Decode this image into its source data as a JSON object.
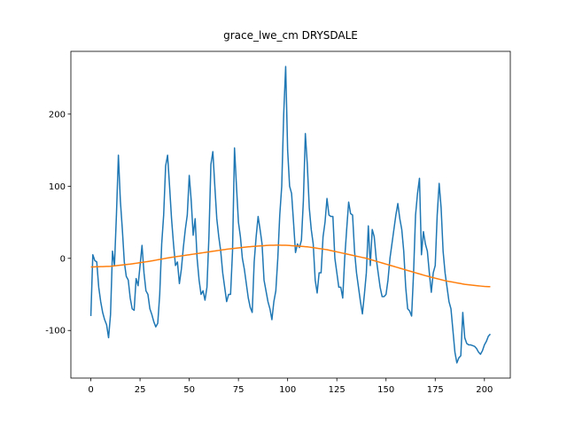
{
  "chart_data": {
    "type": "line",
    "title": "grace_lwe_cm DRYSDALE",
    "xlim": [
      -10.15,
      213.15
    ],
    "xticks": [
      0,
      25,
      50,
      75,
      100,
      125,
      150,
      175,
      200
    ],
    "ylim": [
      -166,
      287
    ],
    "yticks": [
      -100,
      0,
      100,
      200
    ],
    "grid": false,
    "series": [
      {
        "color": "#1f77b4",
        "values": [
          -80,
          5,
          -3,
          -5,
          -40,
          -60,
          -75,
          -85,
          -92,
          -110,
          -78,
          10,
          -10,
          60,
          143,
          80,
          40,
          -5,
          -25,
          -30,
          -55,
          -70,
          -72,
          -28,
          -38,
          -10,
          18,
          -20,
          -45,
          -50,
          -70,
          -78,
          -88,
          -95,
          -90,
          -50,
          20,
          60,
          128,
          143,
          100,
          55,
          20,
          -10,
          -5,
          -35,
          -15,
          15,
          40,
          60,
          115,
          80,
          32,
          55,
          0,
          -30,
          -50,
          -45,
          -58,
          -40,
          30,
          130,
          148,
          100,
          55,
          30,
          10,
          -20,
          -40,
          -60,
          -50,
          -50,
          10,
          153,
          100,
          50,
          30,
          0,
          -15,
          -35,
          -55,
          -68,
          -75,
          -5,
          30,
          58,
          40,
          20,
          -30,
          -45,
          -60,
          -70,
          -85,
          -60,
          -45,
          0,
          60,
          100,
          200,
          266,
          150,
          100,
          90,
          50,
          8,
          20,
          15,
          25,
          80,
          173,
          130,
          70,
          40,
          20,
          -30,
          -48,
          -20,
          -20,
          30,
          50,
          83,
          60,
          58,
          58,
          0,
          -20,
          -40,
          -40,
          -55,
          0,
          40,
          78,
          62,
          60,
          10,
          -20,
          -40,
          -60,
          -77,
          -50,
          -20,
          45,
          -10,
          40,
          30,
          0,
          -20,
          -40,
          -53,
          -53,
          -50,
          -30,
          0,
          20,
          40,
          60,
          76,
          55,
          40,
          10,
          -40,
          -70,
          -73,
          -80,
          -20,
          60,
          90,
          111,
          5,
          37,
          20,
          10,
          -20,
          -47,
          -20,
          -10,
          60,
          104,
          70,
          10,
          -20,
          -40,
          -60,
          -70,
          -100,
          -130,
          -145,
          -138,
          -135,
          -75,
          -110,
          -118,
          -120,
          -120,
          -121,
          -122,
          -125,
          -130,
          -133,
          -128,
          -120,
          -115,
          -108,
          -105
        ]
      },
      {
        "color": "#ff7f0e",
        "values": [
          -12,
          -11.9,
          -11.8,
          -11.7,
          -11.6,
          -11.5,
          -11.4,
          -11.3,
          -11.2,
          -11.1,
          -11,
          -10.7,
          -10.4,
          -10.1,
          -9.8,
          -9.5,
          -9.2,
          -8.9,
          -8.6,
          -8.3,
          -8,
          -7.6,
          -7.2,
          -6.8,
          -6.4,
          -6,
          -5.6,
          -5.2,
          -4.8,
          -4.4,
          -4,
          -3.5,
          -3,
          -2.5,
          -2,
          -1.5,
          -1,
          -0.5,
          0,
          0.5,
          1,
          1.4,
          1.8,
          2.2,
          2.6,
          3,
          3.4,
          3.8,
          4.2,
          4.6,
          5,
          5.4,
          5.8,
          6.2,
          6.6,
          7,
          7.4,
          7.8,
          8.2,
          8.6,
          9,
          9.4,
          9.8,
          10.2,
          10.6,
          11,
          11.4,
          11.8,
          12.2,
          12.6,
          13,
          13.3,
          13.6,
          13.9,
          14.2,
          14.5,
          14.8,
          15.1,
          15.4,
          15.7,
          16,
          16.2,
          16.4,
          16.6,
          16.8,
          17,
          17.2,
          17.4,
          17.6,
          17.8,
          18,
          18.1,
          18.2,
          18.2,
          18.3,
          18.3,
          18.3,
          18.2,
          18.2,
          18.1,
          18,
          17.8,
          17.6,
          17.4,
          17.2,
          17,
          16.8,
          16.6,
          16.4,
          16.2,
          16,
          15.6,
          15.2,
          14.8,
          14.4,
          14,
          13.6,
          13.2,
          12.8,
          12.4,
          12,
          11.4,
          10.8,
          10.2,
          9.6,
          9,
          8.4,
          7.8,
          7.2,
          6.6,
          6,
          5.4,
          4.8,
          4.2,
          3.6,
          3,
          2.4,
          1.8,
          1.2,
          0.6,
          0,
          -0.8,
          -1.6,
          -2.4,
          -3.2,
          -4,
          -4.8,
          -5.6,
          -6.4,
          -7.2,
          -8,
          -8.8,
          -9.6,
          -10.4,
          -11.2,
          -12,
          -12.8,
          -13.6,
          -14.4,
          -15.2,
          -16,
          -16.8,
          -17.6,
          -18.4,
          -19.2,
          -20,
          -20.8,
          -21.6,
          -22.4,
          -23.2,
          -24,
          -24.7,
          -25.4,
          -26.1,
          -26.8,
          -27.5,
          -28.2,
          -28.9,
          -29.6,
          -30.3,
          -31,
          -31.5,
          -32,
          -32.5,
          -33,
          -33.5,
          -34,
          -34.5,
          -35,
          -35.5,
          -36,
          -36.3,
          -36.6,
          -36.9,
          -37.2,
          -37.5,
          -37.8,
          -38.1,
          -38.4,
          -38.7,
          -39,
          -39.1,
          -39.2,
          -39.2
        ]
      }
    ]
  }
}
